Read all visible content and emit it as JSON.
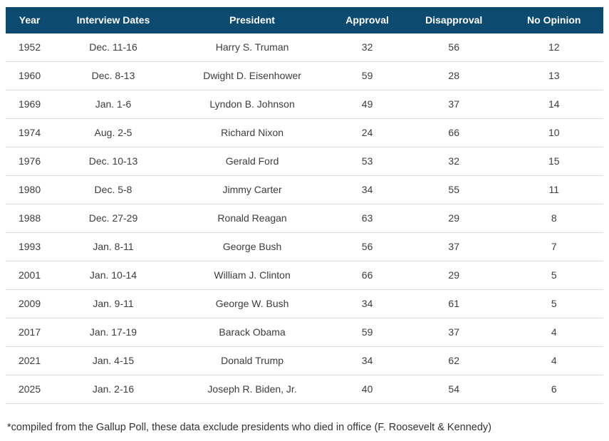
{
  "chart_data": {
    "type": "table",
    "columns": [
      "Year",
      "Interview Dates",
      "President",
      "Approval",
      "Disapproval",
      "No Opinion"
    ],
    "rows": [
      [
        "1952",
        "Dec. 11-16",
        "Harry S. Truman",
        "32",
        "56",
        "12"
      ],
      [
        "1960",
        "Dec. 8-13",
        "Dwight D. Eisenhower",
        "59",
        "28",
        "13"
      ],
      [
        "1969",
        "Jan. 1-6",
        "Lyndon B. Johnson",
        "49",
        "37",
        "14"
      ],
      [
        "1974",
        "Aug. 2-5",
        "Richard Nixon",
        "24",
        "66",
        "10"
      ],
      [
        "1976",
        "Dec. 10-13",
        "Gerald Ford",
        "53",
        "32",
        "15"
      ],
      [
        "1980",
        "Dec. 5-8",
        "Jimmy Carter",
        "34",
        "55",
        "11"
      ],
      [
        "1988",
        "Dec. 27-29",
        "Ronald Reagan",
        "63",
        "29",
        "8"
      ],
      [
        "1993",
        "Jan. 8-11",
        "George Bush",
        "56",
        "37",
        "7"
      ],
      [
        "2001",
        "Jan. 10-14",
        "William J. Clinton",
        "66",
        "29",
        "5"
      ],
      [
        "2009",
        "Jan. 9-11",
        "George W. Bush",
        "34",
        "61",
        "5"
      ],
      [
        "2017",
        "Jan. 17-19",
        "Barack Obama",
        "59",
        "37",
        "4"
      ],
      [
        "2021",
        "Jan. 4-15",
        "Donald Trump",
        "34",
        "62",
        "4"
      ],
      [
        "2025",
        "Jan. 2-16",
        "Joseph R. Biden, Jr.",
        "40",
        "54",
        "6"
      ]
    ]
  },
  "footnote": "*compiled from the Gallup Poll, these data exclude presidents who died in office (F. Roosevelt & Kennedy)",
  "colors": {
    "header_bg": "#0d4a6f",
    "header_text": "#ffffff",
    "body_text": "#3d3d3d",
    "row_border": "#dcdcdc"
  }
}
